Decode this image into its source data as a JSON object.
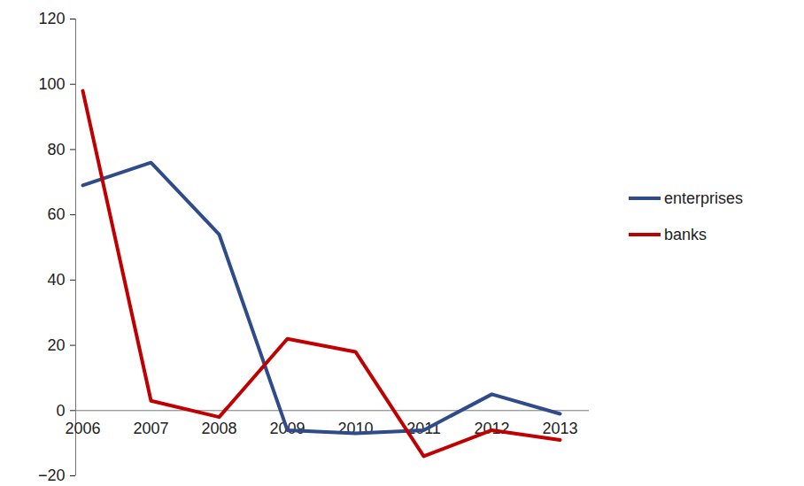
{
  "chart_data": {
    "type": "line",
    "categories": [
      "2006",
      "2007",
      "2008",
      "2009",
      "2010",
      "2011",
      "2012",
      "2013"
    ],
    "series": [
      {
        "name": "enterprises",
        "color": "#2f4b8a",
        "values": [
          69,
          76,
          54,
          -6,
          -7,
          -6,
          5,
          -1
        ]
      },
      {
        "name": "banks",
        "color": "#c00000",
        "values": [
          98,
          3,
          -2,
          22,
          18,
          -14,
          -6,
          -9
        ]
      }
    ],
    "ylim": [
      -20,
      120
    ],
    "yticks": [
      -20,
      0,
      20,
      40,
      60,
      80,
      100,
      120
    ],
    "grid": false,
    "legend": "right"
  }
}
